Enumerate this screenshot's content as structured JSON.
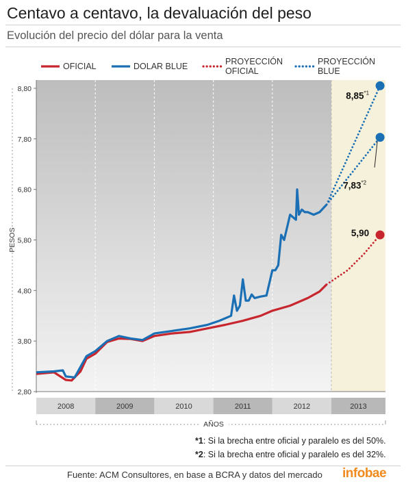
{
  "title": "Centavo a centavo, la devaluación del peso",
  "subtitle": "Evolución del precio del dólar para la venta",
  "notes": [
    {
      "key": "*1",
      "text": ": Si la brecha entre oficial y paralelo es del 50%."
    },
    {
      "key": "*2",
      "text": ": Si la brecha entre oficial y paralelo es del 32%."
    }
  ],
  "source": "Fuente: ACM Consultores, en base a BCRA y datos del mercado",
  "logo": "infobae",
  "colors": {
    "oficial": "#c8262f",
    "blue": "#1a6fb5",
    "projection_band": "#f6f1da",
    "history_band_top": "#bdbdbd",
    "history_band_bottom": "#f3f3f3"
  },
  "chart_data": {
    "type": "line",
    "ylabel": "PESOS",
    "xlabel": "AÑOS",
    "ylim": [
      2.8,
      8.8
    ],
    "yticks": [
      "2,80",
      "3,80",
      "4,80",
      "5,80",
      "6,80",
      "7,80",
      "8,80"
    ],
    "ytick_values": [
      2.8,
      3.8,
      4.8,
      5.8,
      6.8,
      7.8,
      8.8
    ],
    "categories": [
      "2008",
      "2009",
      "2010",
      "2011",
      "2012",
      "2013"
    ],
    "xlim": [
      2008.0,
      2014.0
    ],
    "grid": "vertical dashed lines at year boundaries",
    "legend": {
      "placement": "top",
      "entries": [
        {
          "label": "OFICIAL",
          "style": "solid",
          "color": "#c8262f"
        },
        {
          "label": "DOLAR BLUE",
          "style": "solid",
          "color": "#1a6fb5"
        },
        {
          "label": "PROYECCIÓN OFICIAL",
          "style": "dotted",
          "color": "#c8262f"
        },
        {
          "label": "PROYECCIÓN BLUE",
          "style": "dotted",
          "color": "#1a6fb5"
        }
      ]
    },
    "series": [
      {
        "name": "OFICIAL",
        "style": "solid",
        "x": [
          2008.0,
          2008.3,
          2008.5,
          2008.6,
          2008.75,
          2008.85,
          2009.0,
          2009.2,
          2009.4,
          2009.6,
          2009.8,
          2010.0,
          2010.3,
          2010.6,
          2010.9,
          2011.2,
          2011.5,
          2011.8,
          2012.0,
          2012.3,
          2012.6,
          2012.8,
          2012.92
        ],
        "y": [
          3.15,
          3.18,
          3.03,
          3.02,
          3.2,
          3.45,
          3.55,
          3.78,
          3.85,
          3.84,
          3.8,
          3.9,
          3.95,
          3.98,
          4.05,
          4.12,
          4.2,
          4.3,
          4.4,
          4.5,
          4.65,
          4.78,
          4.92
        ]
      },
      {
        "name": "DOLAR BLUE",
        "style": "solid",
        "x": [
          2008.0,
          2008.3,
          2008.45,
          2008.5,
          2008.65,
          2008.85,
          2009.0,
          2009.2,
          2009.4,
          2009.6,
          2009.8,
          2010.0,
          2010.3,
          2010.6,
          2010.9,
          2011.1,
          2011.3,
          2011.35,
          2011.4,
          2011.45,
          2011.5,
          2011.55,
          2011.6,
          2011.65,
          2011.7,
          2011.8,
          2011.9,
          2012.0,
          2012.05,
          2012.1,
          2012.15,
          2012.2,
          2012.3,
          2012.4,
          2012.42,
          2012.45,
          2012.5,
          2012.55,
          2012.6,
          2012.7,
          2012.8,
          2012.92
        ],
        "y": [
          3.18,
          3.2,
          3.22,
          3.1,
          3.08,
          3.5,
          3.6,
          3.8,
          3.9,
          3.85,
          3.82,
          3.95,
          4.0,
          4.05,
          4.12,
          4.2,
          4.3,
          4.7,
          4.4,
          4.5,
          5.02,
          4.6,
          4.6,
          4.72,
          4.65,
          4.68,
          4.7,
          5.2,
          5.2,
          5.3,
          5.9,
          5.8,
          6.3,
          6.2,
          6.8,
          6.3,
          6.4,
          6.35,
          6.35,
          6.3,
          6.35,
          6.5
        ]
      },
      {
        "name": "PROYECCIÓN OFICIAL",
        "style": "dotted",
        "x": [
          2012.92,
          2013.3,
          2013.6,
          2013.9
        ],
        "y": [
          4.92,
          5.2,
          5.52,
          5.9
        ]
      },
      {
        "name": "PROYECCIÓN BLUE",
        "style": "dotted",
        "scenario": "*1",
        "x": [
          2012.92,
          2013.9
        ],
        "y": [
          6.5,
          8.85
        ]
      },
      {
        "name": "PROYECCIÓN BLUE",
        "style": "dotted",
        "scenario": "*2",
        "x": [
          2012.92,
          2013.9
        ],
        "y": [
          6.5,
          7.83
        ]
      }
    ],
    "annotations": [
      {
        "text": "8,85",
        "sup": "*1",
        "x": 2013.9,
        "y": 8.85,
        "color": "#1a6fb5"
      },
      {
        "text": "7,83",
        "sup": "*2",
        "x": 2013.9,
        "y": 7.83,
        "color": "#1a6fb5"
      },
      {
        "text": "5,90",
        "sup": "",
        "x": 2013.9,
        "y": 5.9,
        "color": "#c8262f"
      }
    ]
  }
}
